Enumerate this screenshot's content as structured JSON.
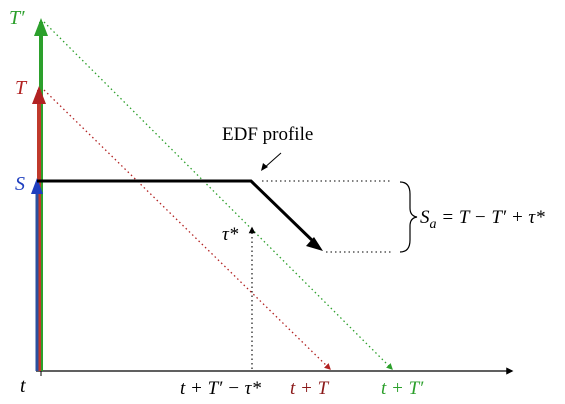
{
  "labels": {
    "t_prime_top": "T′",
    "t_top": "T",
    "s_left": "S",
    "edf_profile": "EDF profile",
    "tau_star": "τ*",
    "t_axis": "t",
    "t_plus_tprime_minus_tau": "t + T′ − τ*",
    "t_plus_t": "t + T",
    "t_plus_tprime": "t + T′",
    "sa_eq_lhs": "S",
    "sa_eq_sub": "a",
    "sa_eq_rhs": " = T − T′ + τ*"
  },
  "colors": {
    "green": "#2ca02c",
    "red": "#b22222",
    "blue": "#1f3fbf",
    "dark_red_text": "#8b1a1a",
    "black": "#000000"
  }
}
